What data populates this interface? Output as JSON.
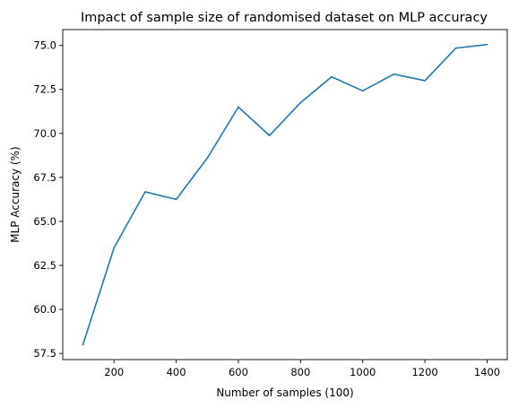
{
  "chart_data": {
    "type": "line",
    "title": "Impact of sample size of randomised dataset on MLP accuracy",
    "xlabel": "Number of samples (100)",
    "ylabel": "MLP Accuracy (%)",
    "xlim": [
      35,
      1465
    ],
    "ylim": [
      57.15,
      75.9
    ],
    "xticks": [
      200,
      400,
      600,
      800,
      1000,
      1200,
      1400
    ],
    "yticks": [
      57.5,
      60.0,
      62.5,
      65.0,
      67.5,
      70.0,
      72.5,
      75.0
    ],
    "grid": false,
    "legend": "none",
    "series": [
      {
        "color": "#1f77b4",
        "x": [
          100,
          200,
          300,
          400,
          500,
          600,
          700,
          800,
          900,
          1000,
          1100,
          1200,
          1300,
          1400
        ],
        "y": [
          58.0,
          63.5,
          66.68,
          66.25,
          68.6,
          71.5,
          69.88,
          71.75,
          73.22,
          72.42,
          73.37,
          73.0,
          74.85,
          75.05
        ]
      }
    ]
  }
}
